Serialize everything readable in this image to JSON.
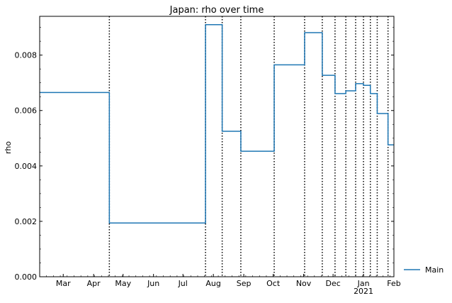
{
  "chart_data": {
    "type": "line",
    "title": "Japan: rho over time",
    "xlabel": "",
    "ylabel": "rho",
    "x_axis": {
      "kind": "date",
      "range": [
        "2020-02-06",
        "2021-02-01"
      ],
      "month_ticks": [
        {
          "label": "Mar",
          "date": "2020-03-01"
        },
        {
          "label": "Apr",
          "date": "2020-04-01"
        },
        {
          "label": "May",
          "date": "2020-05-01"
        },
        {
          "label": "Jun",
          "date": "2020-06-01"
        },
        {
          "label": "Jul",
          "date": "2020-07-01"
        },
        {
          "label": "Aug",
          "date": "2020-08-01"
        },
        {
          "label": "Sep",
          "date": "2020-09-01"
        },
        {
          "label": "Oct",
          "date": "2020-10-01"
        },
        {
          "label": "Nov",
          "date": "2020-11-01"
        },
        {
          "label": "Dec",
          "date": "2020-12-01"
        },
        {
          "label": "Jan",
          "date": "2021-01-01",
          "sublabel": "2021"
        },
        {
          "label": "Feb",
          "date": "2021-02-01"
        }
      ]
    },
    "y_axis": {
      "range": [
        0,
        0.0094
      ],
      "ticks": [
        0,
        0.002,
        0.004,
        0.006,
        0.008
      ],
      "tick_labels": [
        "0.000",
        "0.002",
        "0.004",
        "0.006",
        "0.008"
      ]
    },
    "grid": false,
    "legend": {
      "placement": "outside-bottom-right",
      "entries": [
        "Main"
      ]
    },
    "series": [
      {
        "name": "Main",
        "color": "#1f77b4",
        "step": "post",
        "points": [
          {
            "x": "2020-02-06",
            "y": 0.00665
          },
          {
            "x": "2020-04-17",
            "y": 0.00194
          },
          {
            "x": "2020-07-24",
            "y": 0.0091
          },
          {
            "x": "2020-08-10",
            "y": 0.00525
          },
          {
            "x": "2020-08-29",
            "y": 0.00453
          },
          {
            "x": "2020-10-02",
            "y": 0.00765
          },
          {
            "x": "2020-11-02",
            "y": 0.00881
          },
          {
            "x": "2020-11-20",
            "y": 0.00727
          },
          {
            "x": "2020-12-03",
            "y": 0.00661
          },
          {
            "x": "2020-12-14",
            "y": 0.00671
          },
          {
            "x": "2020-12-24",
            "y": 0.00697
          },
          {
            "x": "2021-01-01",
            "y": 0.00691
          },
          {
            "x": "2021-01-08",
            "y": 0.00661
          },
          {
            "x": "2021-01-15",
            "y": 0.00589
          },
          {
            "x": "2021-01-26",
            "y": 0.00476
          },
          {
            "x": "2021-02-01",
            "y": 0.00476
          }
        ]
      }
    ],
    "vlines": {
      "style": "dotted",
      "color": "#000000",
      "dates": [
        "2020-04-17",
        "2020-07-24",
        "2020-08-10",
        "2020-08-29",
        "2020-10-02",
        "2020-11-02",
        "2020-11-20",
        "2020-12-03",
        "2020-12-14",
        "2020-12-24",
        "2021-01-01",
        "2021-01-08",
        "2021-01-15",
        "2021-01-26"
      ]
    }
  }
}
